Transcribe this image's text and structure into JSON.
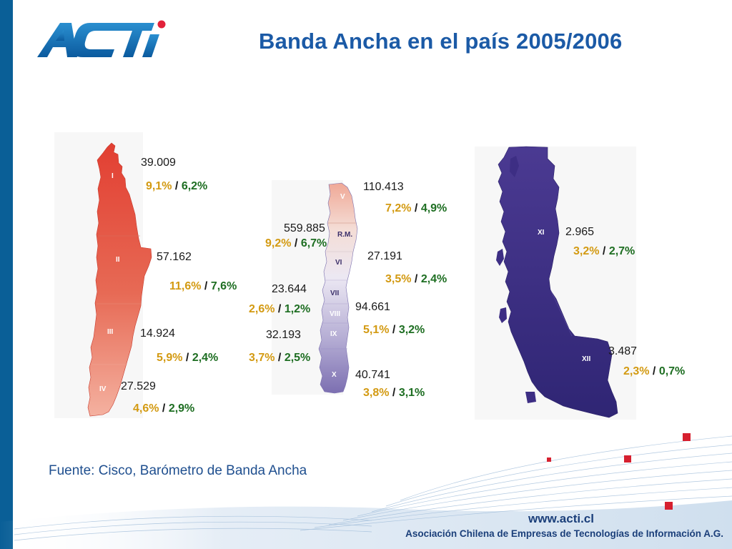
{
  "slide": {
    "title": "Banda Ancha en el país 2005/2006",
    "source": "Fuente: Cisco, Barómetro de Banda Ancha",
    "logo_text": "ACTI",
    "footer_url": "www.acti.cl",
    "footer_org": "Asociación Chilena de Empresas de Tecnologías de Información A.G.",
    "colors": {
      "brand_blue": "#1b5aa6",
      "side_bar": "#0a5f97",
      "logo_red": "#e2213a",
      "pct_2005": "#d39a12",
      "pct_2006": "#1e6e22",
      "north_map": "#e1503d",
      "central_map": "#c9c4e0",
      "south_map": "#3d2e84"
    }
  },
  "regions": [
    {
      "id": "I",
      "subscribers": "39.009",
      "pct_a": "9,1%",
      "sep": " / ",
      "pct_b": "6,2%"
    },
    {
      "id": "II",
      "subscribers": "57.162",
      "pct_a": "11,6%",
      "sep": " / ",
      "pct_b": "7,6%"
    },
    {
      "id": "III",
      "subscribers": "14.924",
      "pct_a": "5,9%",
      "sep": " / ",
      "pct_b": "2,4%"
    },
    {
      "id": "IV",
      "subscribers": "27.529",
      "pct_a": "4,6%",
      "sep": " / ",
      "pct_b": "2,9%"
    },
    {
      "id": "V",
      "subscribers": "110.413",
      "pct_a": "7,2%",
      "sep": " / ",
      "pct_b": "4,9%"
    },
    {
      "id": "R.M.",
      "subscribers": "559.885",
      "pct_a": "9,2%",
      "sep": " / ",
      "pct_b": "6,7%"
    },
    {
      "id": "VI",
      "subscribers": "27.191",
      "pct_a": "3,5%",
      "sep": " / ",
      "pct_b": "2,4%"
    },
    {
      "id": "VII",
      "subscribers": "23.644",
      "pct_a": "2,6%",
      "sep": " / ",
      "pct_b": "1,2%"
    },
    {
      "id": "VIII",
      "subscribers": "94.661",
      "pct_a": "5,1%",
      "sep": " / ",
      "pct_b": "3,2%"
    },
    {
      "id": "IX",
      "subscribers": "32.193",
      "pct_a": "3,7%",
      "sep": " / ",
      "pct_b": "2,5%"
    },
    {
      "id": "X",
      "subscribers": "40.741",
      "pct_a": "3,8%",
      "sep": " / ",
      "pct_b": "3,1%"
    },
    {
      "id": "XI",
      "subscribers": "2.965",
      "pct_a": "3,2%",
      "sep": " / ",
      "pct_b": "2,7%"
    },
    {
      "id": "XII",
      "subscribers": "3.487",
      "pct_a": "2,3%",
      "sep": " / ",
      "pct_b": "0,7%"
    }
  ]
}
